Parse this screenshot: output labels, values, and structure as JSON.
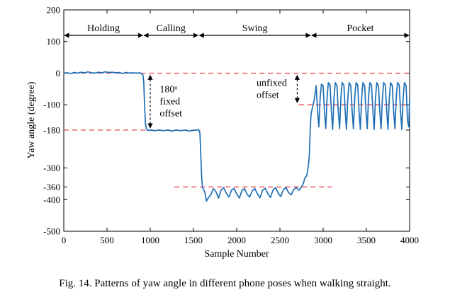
{
  "caption": "Fig. 14.   Patterns of yaw angle in different phone poses when walking straight.",
  "chart_data": {
    "type": "line",
    "title": "",
    "xlabel": "Sample Number",
    "ylabel": "Yaw angle (degree)",
    "xlim": [
      0,
      4000
    ],
    "ylim": [
      -500,
      200
    ],
    "xticks": [
      0,
      500,
      1000,
      1500,
      2000,
      2500,
      3000,
      3500,
      4000
    ],
    "yticks": [
      200,
      100,
      0,
      -100,
      -180,
      -300,
      -360,
      -400,
      -500
    ],
    "line_color": "#1f6fb5",
    "reference_color": "#e3333d",
    "phases": [
      {
        "label": "Holding",
        "start": 0,
        "end": 920
      },
      {
        "label": "Calling",
        "start": 920,
        "end": 1560
      },
      {
        "label": "Swing",
        "start": 1560,
        "end": 2860
      },
      {
        "label": "Pocket",
        "start": 2860,
        "end": 4000
      }
    ],
    "reference_lines": [
      {
        "y": 0,
        "x_start": 0,
        "x_end": 4000
      },
      {
        "y": -180,
        "x_start": 0,
        "x_end": 1580
      },
      {
        "y": -360,
        "x_start": 1280,
        "x_end": 3100
      },
      {
        "y": -100,
        "x_start": 2720,
        "x_end": 4000
      }
    ],
    "annotations": [
      {
        "lines": [
          "180ᵒ",
          "fixed",
          "offset"
        ],
        "x": 1110,
        "y": -60,
        "arrow_x": 1000,
        "arrow_y1": 0,
        "arrow_y2": -180
      },
      {
        "lines": [
          "unfixed",
          "offset"
        ],
        "x": 2230,
        "y": -40,
        "arrow_x": 2700,
        "arrow_y1": 0,
        "arrow_y2": -100
      }
    ],
    "series": [
      {
        "points": [
          [
            0,
            0
          ],
          [
            40,
            1
          ],
          [
            80,
            -1
          ],
          [
            120,
            2
          ],
          [
            160,
            0
          ],
          [
            200,
            3
          ],
          [
            240,
            1
          ],
          [
            280,
            4
          ],
          [
            320,
            1
          ],
          [
            360,
            0
          ],
          [
            400,
            3
          ],
          [
            440,
            1
          ],
          [
            480,
            4
          ],
          [
            520,
            2
          ],
          [
            560,
            3
          ],
          [
            600,
            1
          ],
          [
            640,
            2
          ],
          [
            680,
            -1
          ],
          [
            720,
            2
          ],
          [
            760,
            0
          ],
          [
            800,
            1
          ],
          [
            840,
            0
          ],
          [
            880,
            1
          ],
          [
            900,
            -2
          ],
          [
            915,
            -5
          ],
          [
            925,
            -30
          ],
          [
            935,
            -110
          ],
          [
            945,
            -160
          ],
          [
            955,
            -176
          ],
          [
            970,
            -181
          ],
          [
            1000,
            -180
          ],
          [
            1050,
            -182
          ],
          [
            1100,
            -180
          ],
          [
            1150,
            -182
          ],
          [
            1200,
            -180
          ],
          [
            1250,
            -183
          ],
          [
            1300,
            -180
          ],
          [
            1350,
            -182
          ],
          [
            1400,
            -180
          ],
          [
            1450,
            -183
          ],
          [
            1500,
            -181
          ],
          [
            1540,
            -180
          ],
          [
            1560,
            -178
          ],
          [
            1575,
            -190
          ],
          [
            1585,
            -260
          ],
          [
            1595,
            -330
          ],
          [
            1605,
            -362
          ],
          [
            1630,
            -375
          ],
          [
            1650,
            -405
          ],
          [
            1670,
            -395
          ],
          [
            1700,
            -385
          ],
          [
            1730,
            -365
          ],
          [
            1760,
            -375
          ],
          [
            1790,
            -395
          ],
          [
            1820,
            -370
          ],
          [
            1850,
            -362
          ],
          [
            1880,
            -380
          ],
          [
            1910,
            -392
          ],
          [
            1940,
            -370
          ],
          [
            1970,
            -365
          ],
          [
            2000,
            -382
          ],
          [
            2030,
            -395
          ],
          [
            2060,
            -372
          ],
          [
            2090,
            -365
          ],
          [
            2120,
            -383
          ],
          [
            2150,
            -392
          ],
          [
            2180,
            -372
          ],
          [
            2210,
            -365
          ],
          [
            2240,
            -382
          ],
          [
            2270,
            -394
          ],
          [
            2300,
            -370
          ],
          [
            2330,
            -364
          ],
          [
            2360,
            -381
          ],
          [
            2390,
            -393
          ],
          [
            2420,
            -370
          ],
          [
            2450,
            -362
          ],
          [
            2480,
            -380
          ],
          [
            2510,
            -390
          ],
          [
            2540,
            -368
          ],
          [
            2570,
            -362
          ],
          [
            2600,
            -378
          ],
          [
            2630,
            -385
          ],
          [
            2660,
            -368
          ],
          [
            2690,
            -362
          ],
          [
            2720,
            -370
          ],
          [
            2750,
            -360
          ],
          [
            2770,
            -350
          ],
          [
            2790,
            -330
          ],
          [
            2810,
            -325
          ],
          [
            2825,
            -300
          ],
          [
            2840,
            -260
          ],
          [
            2850,
            -180
          ],
          [
            2860,
            -130
          ],
          [
            2875,
            -110
          ],
          [
            2900,
            -80
          ],
          [
            2920,
            -40
          ],
          [
            2935,
            -120
          ],
          [
            2950,
            -170
          ],
          [
            2965,
            -80
          ],
          [
            2980,
            -35
          ],
          [
            3000,
            -40
          ],
          [
            3015,
            -120
          ],
          [
            3030,
            -175
          ],
          [
            3045,
            -80
          ],
          [
            3060,
            -30
          ],
          [
            3080,
            -38
          ],
          [
            3095,
            -120
          ],
          [
            3110,
            -178
          ],
          [
            3125,
            -80
          ],
          [
            3140,
            -30
          ],
          [
            3160,
            -40
          ],
          [
            3175,
            -120
          ],
          [
            3190,
            -176
          ],
          [
            3205,
            -80
          ],
          [
            3220,
            -30
          ],
          [
            3240,
            -38
          ],
          [
            3255,
            -120
          ],
          [
            3270,
            -178
          ],
          [
            3285,
            -80
          ],
          [
            3300,
            -30
          ],
          [
            3320,
            -40
          ],
          [
            3335,
            -120
          ],
          [
            3350,
            -176
          ],
          [
            3365,
            -80
          ],
          [
            3380,
            -30
          ],
          [
            3400,
            -38
          ],
          [
            3415,
            -120
          ],
          [
            3430,
            -178
          ],
          [
            3445,
            -80
          ],
          [
            3460,
            -30
          ],
          [
            3480,
            -40
          ],
          [
            3495,
            -120
          ],
          [
            3510,
            -176
          ],
          [
            3525,
            -80
          ],
          [
            3540,
            -30
          ],
          [
            3560,
            -38
          ],
          [
            3575,
            -120
          ],
          [
            3590,
            -178
          ],
          [
            3605,
            -80
          ],
          [
            3620,
            -30
          ],
          [
            3640,
            -40
          ],
          [
            3655,
            -120
          ],
          [
            3670,
            -176
          ],
          [
            3685,
            -80
          ],
          [
            3700,
            -30
          ],
          [
            3720,
            -38
          ],
          [
            3735,
            -120
          ],
          [
            3750,
            -178
          ],
          [
            3765,
            -80
          ],
          [
            3780,
            -30
          ],
          [
            3800,
            -40
          ],
          [
            3815,
            -120
          ],
          [
            3830,
            -176
          ],
          [
            3845,
            -80
          ],
          [
            3860,
            -30
          ],
          [
            3880,
            -38
          ],
          [
            3895,
            -120
          ],
          [
            3910,
            -178
          ],
          [
            3925,
            -80
          ],
          [
            3940,
            -30
          ],
          [
            3960,
            -40
          ],
          [
            3975,
            -150
          ],
          [
            3990,
            -170
          ],
          [
            4000,
            -80
          ]
        ]
      }
    ]
  }
}
